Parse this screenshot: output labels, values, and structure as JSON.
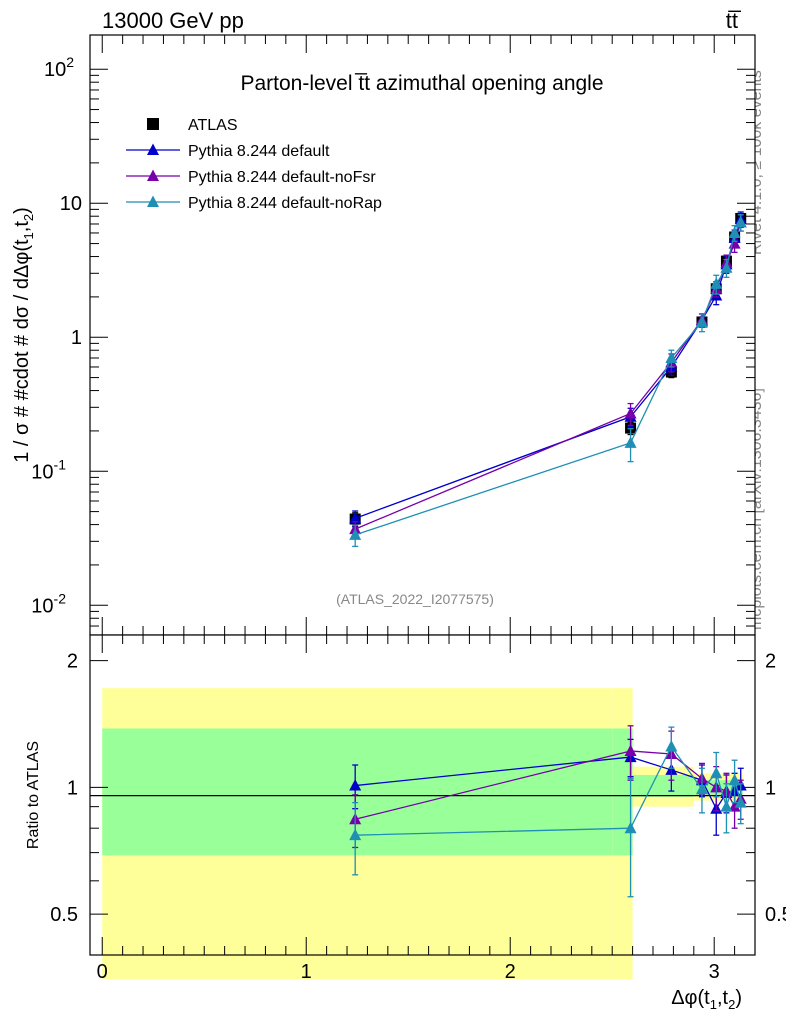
{
  "header": {
    "energy_label": "13000 GeV pp",
    "process_label": "tt̅"
  },
  "side_labels": {
    "rivet": "Rivet 4.1.0, ≥ 100k events",
    "mcplots": "mcplots.cern.ch [arXiv:1306.3436]"
  },
  "chart_data": [
    {
      "type": "line",
      "title": "Parton-level t̅t azimuthal opening angle",
      "watermark": "(ATLAS_2022_I2077575)",
      "ylabel": "1 / σ # #cdot # dσ / dΔφ(t1,t2)",
      "yscale": "log",
      "ylim": [
        0.006,
        180
      ],
      "xlim": [
        -0.06,
        3.2
      ],
      "y_tick_labels": [
        "10^-2",
        "10^-1",
        "1",
        "10",
        "10^2"
      ],
      "legend_position": "top-left",
      "series": [
        {
          "name": "ATLAS",
          "color": "#000000",
          "marker": "square",
          "x": [
            1.24,
            2.59,
            2.79,
            2.94,
            3.01,
            3.06,
            3.1,
            3.13
          ],
          "y": [
            0.044,
            0.21,
            0.55,
            1.3,
            2.3,
            3.7,
            5.6,
            7.7
          ],
          "yerr": [
            0.005,
            0.022,
            0.05,
            0.1,
            0.18,
            0.3,
            0.45,
            0.6
          ]
        },
        {
          "name": "Pythia 8.244 default",
          "color": "#0000cc",
          "marker": "triangle",
          "x": [
            1.24,
            2.59,
            2.79,
            2.94,
            3.01,
            3.06,
            3.1,
            3.13
          ],
          "y": [
            0.0445,
            0.255,
            0.6,
            1.34,
            2.05,
            3.5,
            5.5,
            7.6
          ],
          "yerr": [
            0.006,
            0.04,
            0.08,
            0.15,
            0.3,
            0.5,
            0.8,
            1.0
          ]
        },
        {
          "name": "Pythia 8.244 default-noFsr",
          "color": "#7700aa",
          "marker": "triangle",
          "x": [
            1.24,
            2.59,
            2.79,
            2.94,
            3.01,
            3.06,
            3.1,
            3.13
          ],
          "y": [
            0.037,
            0.27,
            0.65,
            1.35,
            2.3,
            3.6,
            5.0,
            7.2
          ],
          "yerr": [
            0.005,
            0.05,
            0.1,
            0.15,
            0.3,
            0.5,
            0.7,
            1.0
          ]
        },
        {
          "name": "Pythia 8.244 default-noRap",
          "color": "#1f8fb5",
          "marker": "triangle",
          "x": [
            1.24,
            2.59,
            2.79,
            2.94,
            3.01,
            3.06,
            3.1,
            3.13
          ],
          "y": [
            0.0335,
            0.163,
            0.7,
            1.3,
            2.5,
            3.3,
            6.0,
            7.2
          ],
          "yerr": [
            0.006,
            0.045,
            0.1,
            0.2,
            0.4,
            0.5,
            0.8,
            1.0
          ]
        }
      ]
    },
    {
      "type": "line",
      "ylabel": "Ratio to ATLAS",
      "xlabel": "Δφ(t1,t2)",
      "yscale": "log",
      "ylim": [
        0.4,
        2.3
      ],
      "xlim": [
        -0.06,
        3.2
      ],
      "x_tick_labels": [
        "0",
        "1",
        "2",
        "3"
      ],
      "y_tick_labels": [
        "0.5",
        "1",
        "2"
      ],
      "bands": [
        {
          "x0": 0.0,
          "x1": 2.5,
          "yellow": [
            0.35,
            1.72
          ],
          "green": [
            0.69,
            1.38
          ]
        },
        {
          "x0": 2.5,
          "x1": 2.6,
          "yellow": [
            0.35,
            1.72
          ],
          "green": [
            0.69,
            1.38
          ]
        },
        {
          "x0": 2.6,
          "x1": 2.9,
          "yellow": [
            0.9,
            1.12
          ],
          "green": [
            0.95,
            1.07
          ]
        },
        {
          "x0": 2.9,
          "x1": 3.14,
          "yellow": [
            0.93,
            1.08
          ],
          "green": [
            0.96,
            1.04
          ]
        }
      ],
      "series": [
        {
          "name": "Pythia 8.244 default",
          "color": "#0000cc",
          "x": [
            1.24,
            2.59,
            2.79,
            2.94,
            3.01,
            3.06,
            3.1,
            3.13
          ],
          "y": [
            1.01,
            1.18,
            1.1,
            1.04,
            0.89,
            0.97,
            0.98,
            1.01
          ],
          "yerr": [
            0.12,
            0.12,
            0.12,
            0.09,
            0.12,
            0.1,
            0.1,
            0.1
          ]
        },
        {
          "name": "Pythia 8.244 default-noFsr",
          "color": "#7700aa",
          "x": [
            1.24,
            2.59,
            2.79,
            2.94,
            3.01,
            3.06,
            3.1,
            3.13
          ],
          "y": [
            0.84,
            1.22,
            1.2,
            1.05,
            1.0,
            0.98,
            0.9,
            0.94
          ],
          "yerr": [
            0.12,
            0.18,
            0.16,
            0.09,
            0.12,
            0.1,
            0.1,
            0.1
          ]
        },
        {
          "name": "Pythia 8.244 default-noRap",
          "color": "#1f8fb5",
          "x": [
            1.24,
            2.59,
            2.79,
            2.94,
            3.01,
            3.06,
            3.1,
            3.13
          ],
          "y": [
            0.77,
            0.8,
            1.25,
            0.99,
            1.08,
            0.9,
            1.04,
            0.92
          ],
          "yerr": [
            0.15,
            0.25,
            0.14,
            0.12,
            0.13,
            0.12,
            0.12,
            0.1
          ]
        }
      ]
    }
  ]
}
